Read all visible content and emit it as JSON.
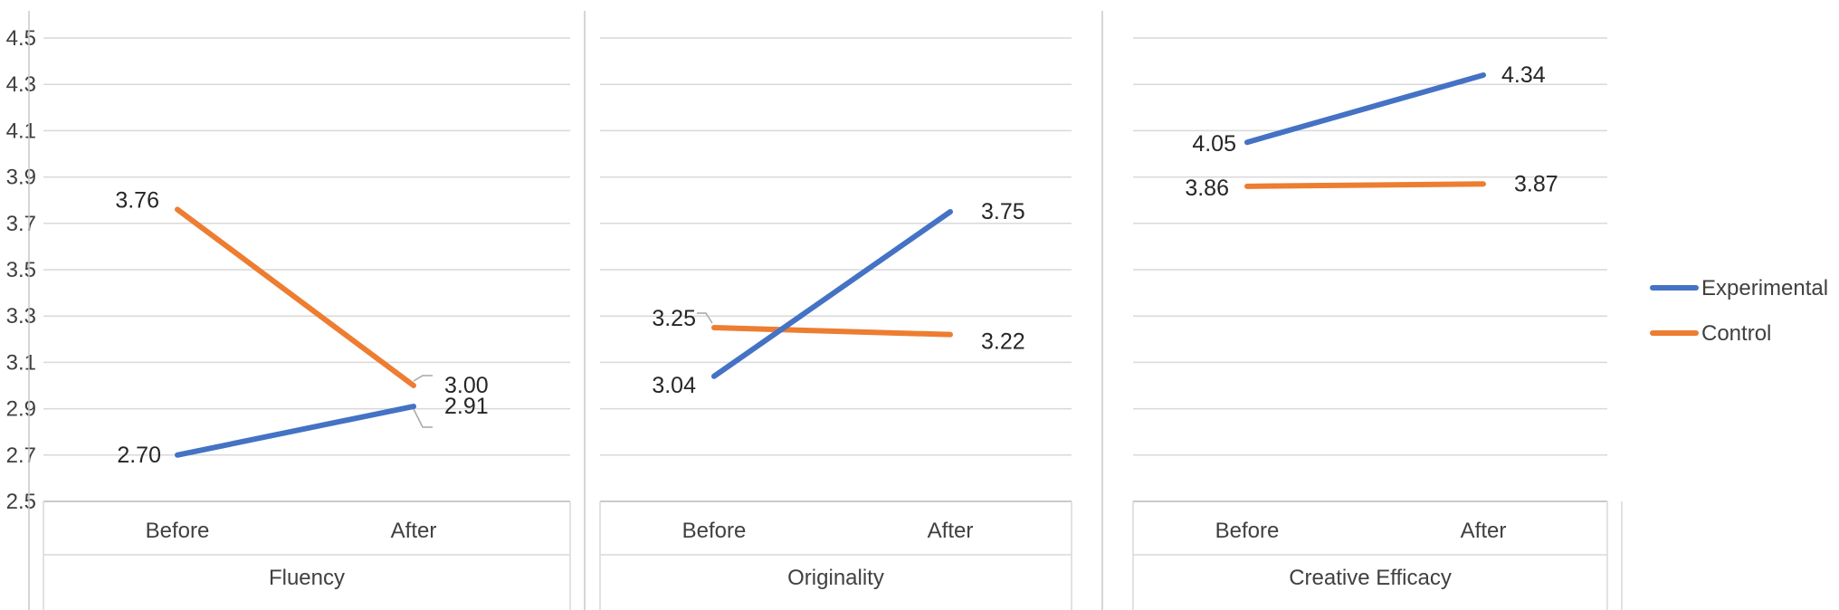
{
  "chart_data": {
    "type": "line",
    "ylim": [
      2.5,
      4.5
    ],
    "yticks": [
      "4.5",
      "4.3",
      "4.1",
      "3.9",
      "3.7",
      "3.5",
      "3.3",
      "3.1",
      "2.9",
      "2.7",
      "2.5"
    ],
    "categories": [
      "Before",
      "After"
    ],
    "grid": true,
    "legend_position": "right",
    "series_colors": {
      "Experimental": "#4472c4",
      "Control": "#ed7d31"
    },
    "legend": [
      "Experimental",
      "Control"
    ],
    "panels": [
      {
        "group": "Fluency",
        "series": [
          {
            "name": "Experimental",
            "values": [
              2.7,
              2.91
            ],
            "labels": [
              "2.70",
              "2.91"
            ]
          },
          {
            "name": "Control",
            "values": [
              3.76,
              3.0
            ],
            "labels": [
              "3.76",
              "3.00"
            ]
          }
        ]
      },
      {
        "group": "Originality",
        "series": [
          {
            "name": "Experimental",
            "values": [
              3.04,
              3.75
            ],
            "labels": [
              "3.04",
              "3.75"
            ]
          },
          {
            "name": "Control",
            "values": [
              3.25,
              3.22
            ],
            "labels": [
              "3.25",
              "3.22"
            ]
          }
        ]
      },
      {
        "group": "Creative Efficacy",
        "series": [
          {
            "name": "Experimental",
            "values": [
              4.05,
              4.34
            ],
            "labels": [
              "4.05",
              "4.34"
            ]
          },
          {
            "name": "Control",
            "values": [
              3.86,
              3.87
            ],
            "labels": [
              "3.86",
              "3.87"
            ]
          }
        ]
      }
    ]
  }
}
